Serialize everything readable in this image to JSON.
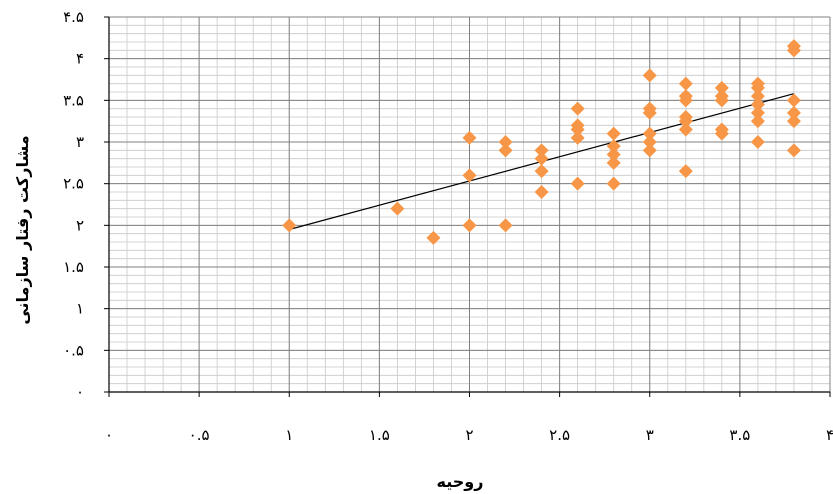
{
  "chart_data": {
    "type": "scatter",
    "title": "",
    "xlabel": "روحیه",
    "ylabel": "مشارکت رفتار سازمانی",
    "xlim": [
      0,
      4
    ],
    "ylim": [
      0,
      4.5
    ],
    "x_ticks": [
      0,
      0.5,
      1,
      1.5,
      2,
      2.5,
      3,
      3.5,
      4
    ],
    "y_ticks": [
      0,
      0.5,
      1,
      1.5,
      2,
      2.5,
      3,
      3.5,
      4,
      4.5
    ],
    "x_tick_labels": [
      "۰",
      "۰.۵",
      "۱",
      "۱.۵",
      "۲",
      "۲.۵",
      "۳",
      "۳.۵",
      "۴"
    ],
    "y_tick_labels": [
      "۰",
      "۰.۵",
      "۱",
      "۱.۵",
      "۲",
      "۲.۵",
      "۳",
      "۳.۵",
      "۴",
      "۴.۵"
    ],
    "grid": true,
    "marker_color": "#f79646",
    "trendline_color": "#000000",
    "series": [
      {
        "marker": "diamond",
        "points": [
          [
            1.0,
            2.0
          ],
          [
            1.6,
            2.2
          ],
          [
            1.8,
            1.85
          ],
          [
            2.0,
            3.05
          ],
          [
            2.0,
            2.6
          ],
          [
            2.0,
            2.0
          ],
          [
            2.2,
            3.0
          ],
          [
            2.2,
            2.9
          ],
          [
            2.2,
            2.0
          ],
          [
            2.4,
            2.9
          ],
          [
            2.4,
            2.8
          ],
          [
            2.4,
            2.65
          ],
          [
            2.4,
            2.4
          ],
          [
            2.6,
            3.4
          ],
          [
            2.6,
            3.2
          ],
          [
            2.6,
            3.15
          ],
          [
            2.6,
            3.05
          ],
          [
            2.6,
            2.5
          ],
          [
            2.8,
            3.1
          ],
          [
            2.8,
            2.95
          ],
          [
            2.8,
            2.85
          ],
          [
            2.8,
            2.75
          ],
          [
            2.8,
            2.5
          ],
          [
            3.0,
            3.8
          ],
          [
            3.0,
            3.4
          ],
          [
            3.0,
            3.35
          ],
          [
            3.0,
            3.1
          ],
          [
            3.0,
            3.0
          ],
          [
            3.0,
            2.9
          ],
          [
            3.2,
            3.7
          ],
          [
            3.2,
            3.55
          ],
          [
            3.2,
            3.5
          ],
          [
            3.2,
            3.3
          ],
          [
            3.2,
            3.25
          ],
          [
            3.2,
            3.15
          ],
          [
            3.2,
            2.65
          ],
          [
            3.4,
            3.65
          ],
          [
            3.4,
            3.55
          ],
          [
            3.4,
            3.5
          ],
          [
            3.4,
            3.15
          ],
          [
            3.4,
            3.1
          ],
          [
            3.6,
            3.7
          ],
          [
            3.6,
            3.65
          ],
          [
            3.6,
            3.55
          ],
          [
            3.6,
            3.45
          ],
          [
            3.6,
            3.35
          ],
          [
            3.6,
            3.25
          ],
          [
            3.6,
            3.0
          ],
          [
            3.8,
            4.15
          ],
          [
            3.8,
            4.1
          ],
          [
            3.8,
            3.5
          ],
          [
            3.8,
            3.35
          ],
          [
            3.8,
            3.25
          ],
          [
            3.8,
            2.9
          ]
        ]
      }
    ],
    "trendline": {
      "x": [
        1.0,
        3.8
      ],
      "y": [
        1.95,
        3.58
      ]
    }
  }
}
